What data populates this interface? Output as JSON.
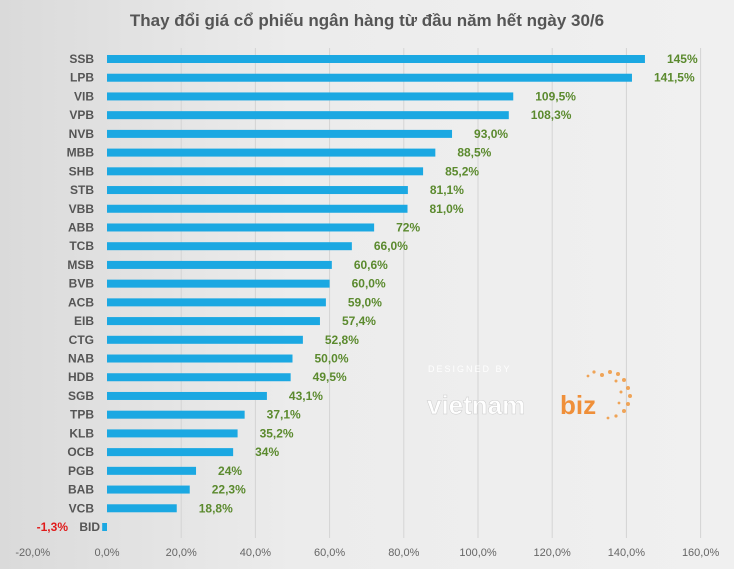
{
  "chart_data": {
    "type": "bar",
    "orientation": "horizontal",
    "title": "Thay đổi giá cổ phiếu ngân hàng từ đầu năm hết ngày 30/6",
    "categories": [
      "SSB",
      "LPB",
      "VIB",
      "VPB",
      "NVB",
      "MBB",
      "SHB",
      "STB",
      "VBB",
      "ABB",
      "TCB",
      "MSB",
      "BVB",
      "ACB",
      "EIB",
      "CTG",
      "NAB",
      "HDB",
      "SGB",
      "TPB",
      "KLB",
      "OCB",
      "PGB",
      "BAB",
      "VCB",
      "BID"
    ],
    "values": [
      145,
      141.5,
      109.5,
      108.3,
      93.0,
      88.5,
      85.2,
      81.1,
      81.0,
      72,
      66.0,
      60.6,
      60.0,
      59.0,
      57.4,
      52.8,
      50.0,
      49.5,
      43.1,
      37.1,
      35.2,
      34,
      24,
      22.3,
      18.8,
      -1.3
    ],
    "labels": [
      "145%",
      "141,5%",
      "109,5%",
      "108,3%",
      "93,0%",
      "88,5%",
      "85,2%",
      "81,1%",
      "81,0%",
      "72%",
      "66,0%",
      "60,6%",
      "60,0%",
      "59,0%",
      "57,4%",
      "52,8%",
      "50,0%",
      "49,5%",
      "43,1%",
      "37,1%",
      "35,2%",
      "34%",
      "24%",
      "22,3%",
      "18,8%",
      "-1,3%"
    ],
    "xlim": [
      -20,
      160
    ],
    "xticks": [
      -20,
      0,
      20,
      40,
      60,
      80,
      100,
      120,
      140,
      160
    ],
    "xtick_labels": [
      "-20,0%",
      "0,0%",
      "20,0%",
      "40,0%",
      "60,0%",
      "80,0%",
      "100,0%",
      "120,0%",
      "140,0%",
      "160,0%"
    ],
    "xlabel": "",
    "ylabel": "",
    "grid": true,
    "legend": "none",
    "colors": {
      "bar": "#1ba8e2",
      "positive_label": "#5b8a2e",
      "negative_label": "#e01b1b"
    }
  },
  "watermark": {
    "line1": "DESIGNED BY",
    "brand_left": "vietnam",
    "brand_right": "biz"
  }
}
